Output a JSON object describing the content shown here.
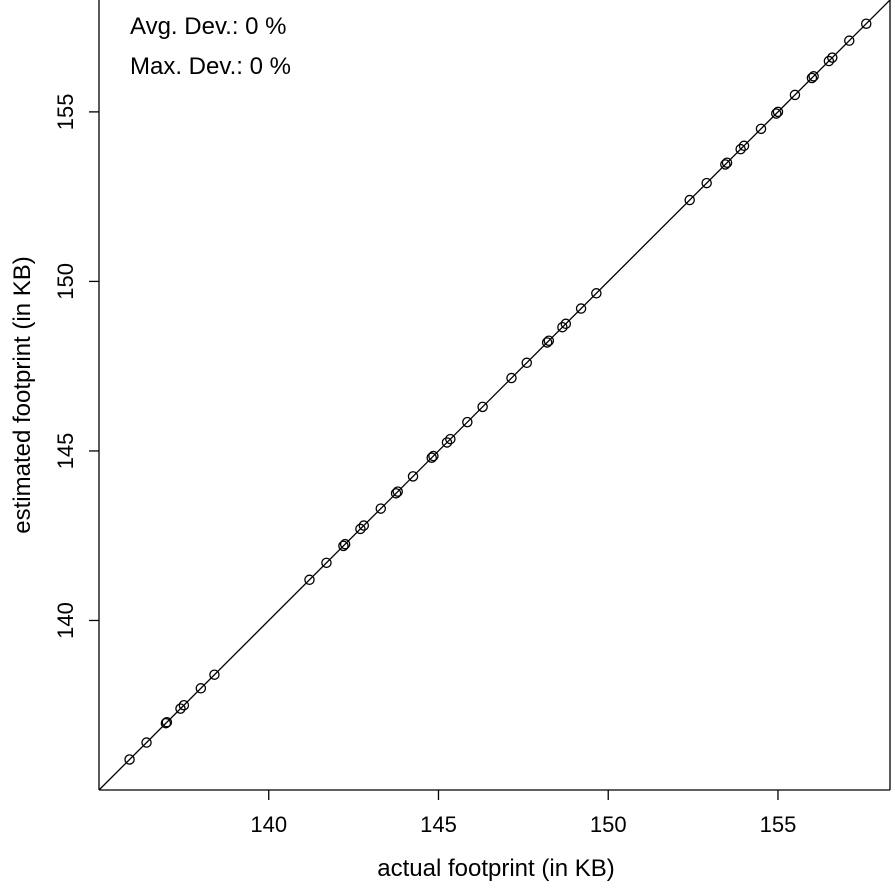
{
  "chart_data": {
    "type": "scatter",
    "title": "",
    "xlabel": "actual footprint (in KB)",
    "ylabel": "estimated footprint (in KB)",
    "xlim": [
      135.0,
      158.3
    ],
    "ylim": [
      135.0,
      158.3
    ],
    "x_ticks": [
      140,
      145,
      150,
      155
    ],
    "y_ticks": [
      140,
      145,
      150,
      155
    ],
    "x_tick_labels": [
      "140",
      "145",
      "150",
      "155"
    ],
    "y_tick_labels": [
      "140",
      "145",
      "150",
      "155"
    ],
    "grid": false,
    "legend": "none",
    "marker": "open-circle",
    "reference_line": "y = x",
    "annotations": [
      "Avg. Dev.: 0 %",
      "Max. Dev.: 0 %"
    ],
    "series": [
      {
        "x": [
          135.9,
          136.4,
          136.97,
          137.0,
          137.4,
          137.5,
          138.0,
          138.4,
          141.2,
          141.7,
          142.2,
          142.25,
          142.7,
          142.8,
          143.3,
          143.75,
          143.8,
          144.25,
          144.8,
          144.85,
          145.25,
          145.35,
          145.85,
          146.3,
          147.15,
          147.6,
          148.2,
          148.25,
          148.65,
          148.75,
          149.2,
          149.65,
          152.4,
          152.9,
          153.45,
          153.5,
          153.9,
          154.0,
          154.5,
          154.95,
          155.0,
          155.5,
          156.0,
          156.05,
          156.5,
          156.6,
          157.1,
          157.6
        ],
        "y": [
          135.9,
          136.4,
          136.97,
          137.0,
          137.4,
          137.5,
          138.0,
          138.4,
          141.2,
          141.7,
          142.2,
          142.25,
          142.7,
          142.8,
          143.3,
          143.75,
          143.8,
          144.25,
          144.8,
          144.85,
          145.25,
          145.35,
          145.85,
          146.3,
          147.15,
          147.6,
          148.2,
          148.25,
          148.65,
          148.75,
          149.2,
          149.65,
          152.4,
          152.9,
          153.45,
          153.5,
          153.9,
          154.0,
          154.5,
          154.95,
          155.0,
          155.5,
          156.0,
          156.05,
          156.5,
          156.6,
          157.1,
          157.6
        ]
      }
    ]
  }
}
